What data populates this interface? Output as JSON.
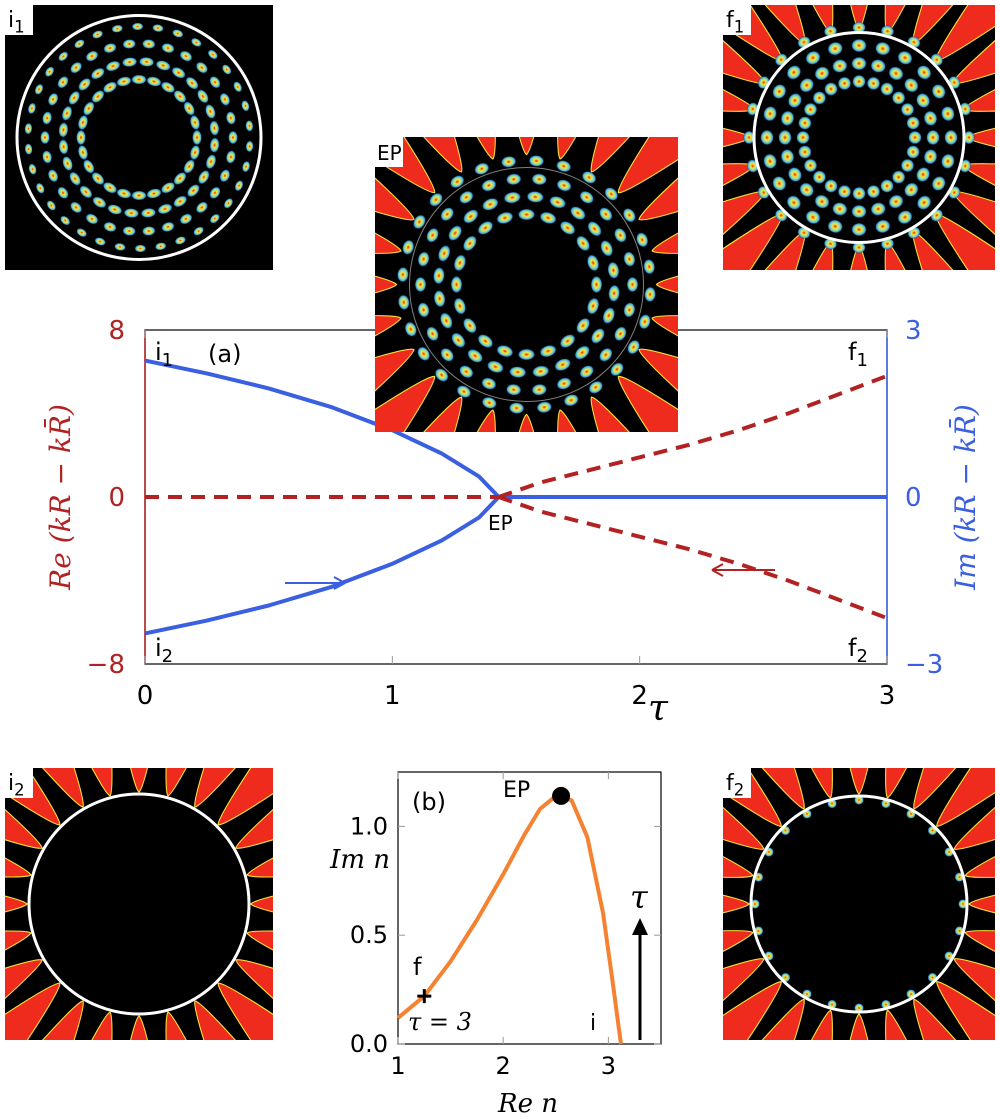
{
  "colors": {
    "re_series": "#b22222",
    "im_series": "#3a5fe0",
    "path_b": "#f58231",
    "mode_background": "#ee2b1c",
    "dark": "#000000"
  },
  "panels": {
    "i1": "i1",
    "EP": "EP",
    "f1": "f1",
    "i2": "i2",
    "f2": "f2"
  },
  "chart_data": [
    {
      "type": "line",
      "panel_label": "(a)",
      "xlabel": "τ",
      "ylabel_left": "Re (kR − kR̄)",
      "ylabel_right": "Im (kR − kR̄)",
      "xlim": [
        0,
        3
      ],
      "ylim_left": [
        -8,
        8
      ],
      "ylim_right": [
        -3,
        3
      ],
      "x_ticks": [
        "0",
        "1",
        "2",
        "3"
      ],
      "y_ticks_left": [
        "8",
        "0",
        "−8"
      ],
      "y_ticks_right": [
        "3",
        "0",
        "−3"
      ],
      "ep_tau": 1.43,
      "annotations": {
        "i1": "i1",
        "i2": "i2",
        "f1": "f1",
        "f2": "f2",
        "ep": "EP"
      },
      "series": [
        {
          "name": "Im upper",
          "axis": "right",
          "style": "solid",
          "x": [
            0,
            0.25,
            0.5,
            0.75,
            1.0,
            1.2,
            1.35,
            1.43
          ],
          "y": [
            2.45,
            2.22,
            1.95,
            1.62,
            1.2,
            0.78,
            0.37,
            0
          ]
        },
        {
          "name": "Im lower",
          "axis": "right",
          "style": "solid",
          "x": [
            0,
            0.25,
            0.5,
            0.75,
            1.0,
            1.2,
            1.35,
            1.43
          ],
          "y": [
            -2.45,
            -2.22,
            -1.95,
            -1.62,
            -1.2,
            -0.78,
            -0.37,
            0
          ]
        },
        {
          "name": "Im merged",
          "axis": "right",
          "style": "solid",
          "x": [
            1.43,
            3.0
          ],
          "y": [
            0,
            0
          ]
        },
        {
          "name": "Re merged",
          "axis": "left",
          "style": "dashed",
          "x": [
            0,
            1.43
          ],
          "y": [
            0,
            0
          ]
        },
        {
          "name": "Re upper",
          "axis": "left",
          "style": "dashed",
          "x": [
            1.43,
            1.6,
            1.8,
            2.0,
            2.2,
            2.4,
            2.6,
            2.8,
            3.0
          ],
          "y": [
            0,
            0.7,
            1.3,
            1.9,
            2.5,
            3.2,
            4.0,
            4.9,
            5.8
          ]
        },
        {
          "name": "Re lower",
          "axis": "left",
          "style": "dashed",
          "x": [
            1.43,
            1.6,
            1.8,
            2.0,
            2.2,
            2.4,
            2.6,
            2.8,
            3.0
          ],
          "y": [
            0,
            -0.7,
            -1.3,
            -1.9,
            -2.5,
            -3.2,
            -4.0,
            -4.9,
            -5.8
          ]
        }
      ]
    },
    {
      "type": "line",
      "panel_label": "(b)",
      "xlabel": "Re n",
      "ylabel": "Im n",
      "xlim": [
        1.0,
        3.5
      ],
      "ylim": [
        0.0,
        1.25
      ],
      "x_ticks": [
        "1",
        "2",
        "3"
      ],
      "y_ticks": [
        "0.0",
        "0.5",
        "1.0"
      ],
      "annotations": {
        "ep": "EP",
        "f": "f",
        "i": "i",
        "tau_end": "τ = 3",
        "tau_arrow": "τ"
      },
      "series": [
        {
          "name": "n(τ)",
          "x": [
            1.0,
            1.25,
            1.5,
            1.75,
            2.0,
            2.2,
            2.35,
            2.5,
            2.65,
            2.8,
            2.95,
            3.05,
            3.1,
            3.12
          ],
          "y": [
            0.12,
            0.22,
            0.38,
            0.57,
            0.78,
            0.96,
            1.08,
            1.14,
            1.12,
            0.95,
            0.6,
            0.25,
            0.07,
            0.0
          ]
        }
      ],
      "points": {
        "ep": [
          2.55,
          1.14
        ],
        "f": [
          1.25,
          0.22
        ]
      }
    }
  ]
}
